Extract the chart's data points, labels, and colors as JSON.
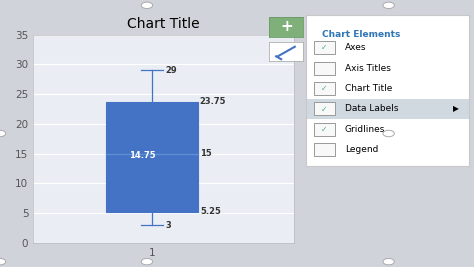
{
  "title": "Chart Title",
  "xlabel": "1",
  "whisker_min": 3,
  "q1": 5.25,
  "median": 15,
  "q3": 23.75,
  "whisker_max": 29,
  "mean": 14.75,
  "ylim": [
    0,
    35
  ],
  "yticks": [
    0,
    5,
    10,
    15,
    20,
    25,
    30,
    35
  ],
  "box_color": "#4472C4",
  "box_edge_color": "#4472C4",
  "whisker_color": "#4472C4",
  "label_color": "#333333",
  "mean_label_color": "#FFFFFF",
  "bg_color": "#E8EBF0",
  "plot_bg": "#EAEEF4",
  "grid_color": "#FFFFFF",
  "panel_bg": "#FFFFFF",
  "panel_border": "#C8C8C8",
  "panel_title_color": "#2E75B6",
  "panel_highlight_bg": "#D0D8E0",
  "checkbox_check_color": "#4CAF8A",
  "plus_bg": "#7FB07A",
  "pencil_bg": "#FFFFFF",
  "chart_elements": [
    "Axes",
    "Axis Titles",
    "Chart Title",
    "Data Labels",
    "Gridlines",
    "Legend"
  ],
  "checked": [
    true,
    false,
    true,
    true,
    true,
    false
  ],
  "highlighted": "Data Labels",
  "outer_bg": "#D0D4DA"
}
